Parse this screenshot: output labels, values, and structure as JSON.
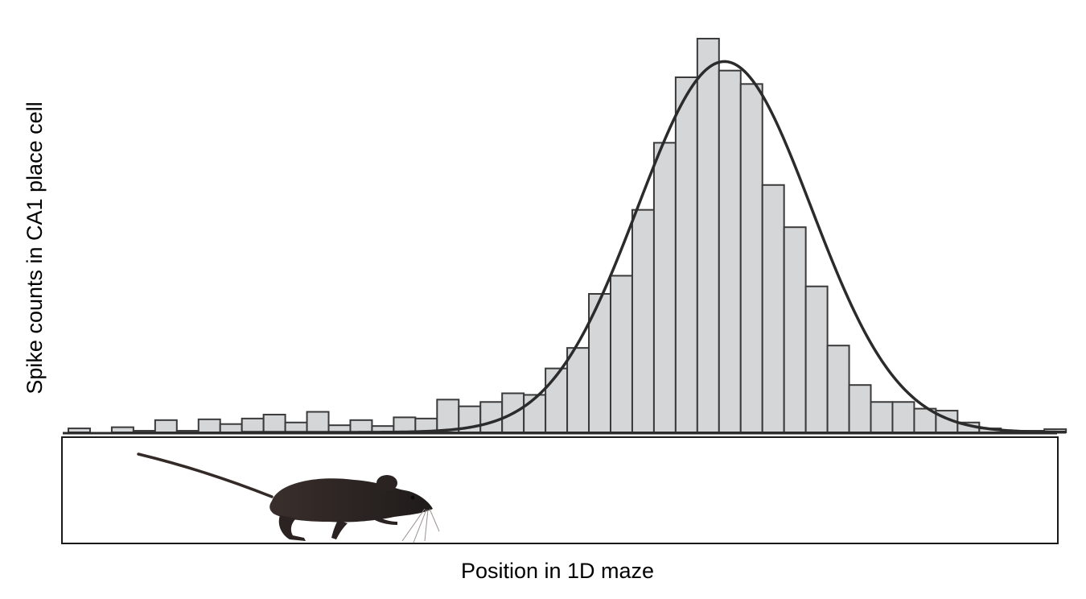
{
  "chart_data": {
    "type": "bar",
    "xlabel": "Position in 1D maze",
    "ylabel": "Spike counts in CA1 place cell",
    "grid": false,
    "legend": "none",
    "values": [
      0.01,
      0,
      0.013,
      0.004,
      0.031,
      0.004,
      0.033,
      0.021,
      0.035,
      0.045,
      0.025,
      0.052,
      0.018,
      0.031,
      0.016,
      0.038,
      0.035,
      0.083,
      0.066,
      0.077,
      0.099,
      0.095,
      0.162,
      0.214,
      0.351,
      0.397,
      0.564,
      0.734,
      0.9,
      0.998,
      0.917,
      0.883,
      0.627,
      0.52,
      0.37,
      0.22,
      0.12,
      0.077,
      0.077,
      0.06,
      0.055,
      0.025,
      0.01,
      0.002,
      0.004,
      0.008
    ],
    "fit": {
      "type": "gaussian",
      "mean_bin": 30.25,
      "sd_bins": 4.0,
      "peak": 0.94
    },
    "colors": {
      "bar_fill": "#d5d6d8",
      "bar_edge": "#3a3a3a",
      "fit_line": "#2b2b2b",
      "mouse": "#2e2624"
    },
    "illustration": {
      "icon": "mouse-silhouette-icon",
      "context": "maze-track"
    }
  }
}
